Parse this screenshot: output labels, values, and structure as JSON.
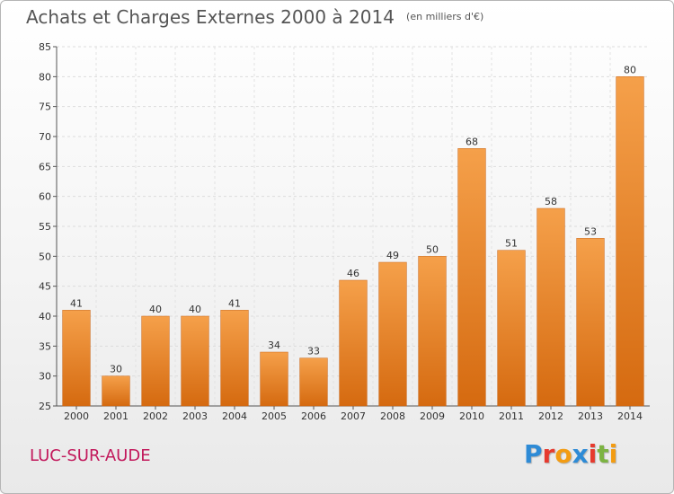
{
  "header": {
    "title": "Achats et Charges Externes 2000 à 2014",
    "subtitle": "(en milliers d'€)"
  },
  "place_name": "LUC-SUR-AUDE",
  "logo": {
    "letters": [
      "P",
      "r",
      "o",
      "x",
      "i",
      "t",
      "i"
    ],
    "colors": [
      "#2e8bd6",
      "#e63a2e",
      "#f39c12",
      "#2e8bd6",
      "#e63a2e",
      "#7cb342",
      "#f39c12"
    ]
  },
  "chart_data": {
    "type": "bar",
    "title": "Achats et Charges Externes 2000 à 2014",
    "subtitle": "(en milliers d'€)",
    "categories": [
      "2000",
      "2001",
      "2002",
      "2003",
      "2004",
      "2005",
      "2006",
      "2007",
      "2008",
      "2009",
      "2010",
      "2011",
      "2012",
      "2013",
      "2014"
    ],
    "values": [
      41,
      30,
      40,
      40,
      41,
      34,
      33,
      46,
      49,
      50,
      68,
      51,
      58,
      53,
      80
    ],
    "data_labels": [
      "41",
      "30",
      "40",
      "40",
      "41",
      "34",
      "33",
      "46",
      "49",
      "50",
      "68",
      "51",
      "58",
      "53",
      "80"
    ],
    "yticks": [
      "25",
      "30",
      "35",
      "40",
      "45",
      "50",
      "55",
      "60",
      "65",
      "70",
      "75",
      "80",
      "85"
    ],
    "ylim": [
      25,
      85
    ],
    "ystep": 5,
    "grid": true,
    "bar_color_light": "#f5a04a",
    "bar_color_dark": "#d56a10"
  }
}
